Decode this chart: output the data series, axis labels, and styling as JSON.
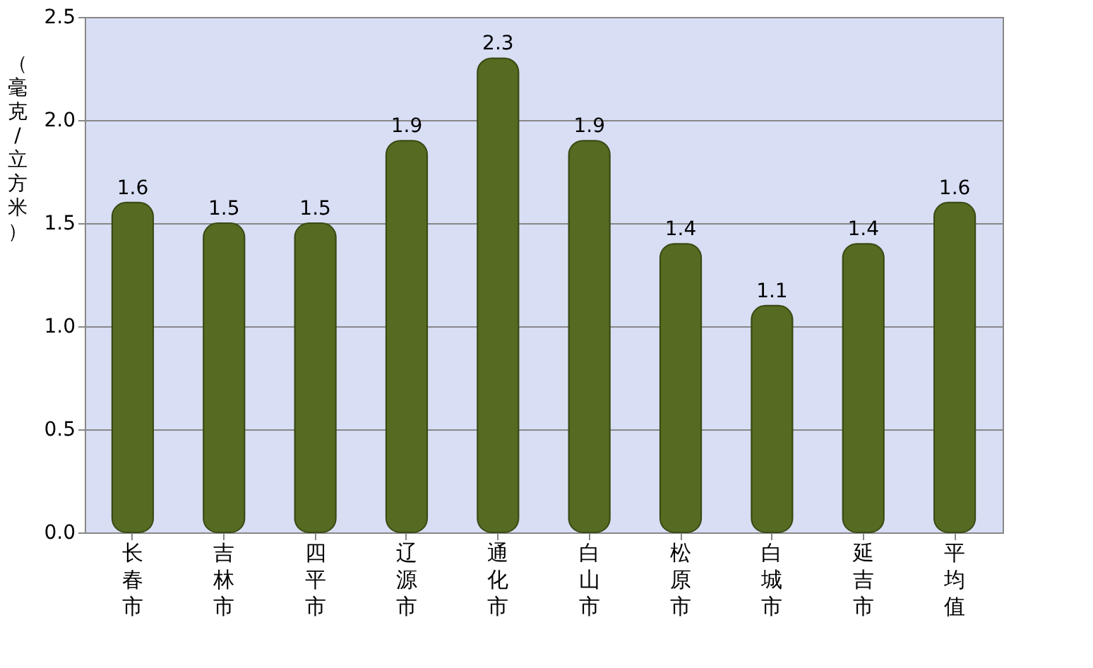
{
  "chart_data": {
    "type": "bar",
    "ylabel": "（毫克/立方米）",
    "categories": [
      "长春市",
      "吉林市",
      "四平市",
      "辽源市",
      "通化市",
      "白山市",
      "松原市",
      "白城市",
      "延吉市",
      "平均值"
    ],
    "values": [
      1.6,
      1.5,
      1.5,
      1.9,
      2.3,
      1.9,
      1.4,
      1.1,
      1.4,
      1.6
    ],
    "color": "#556b22",
    "ylim": [
      0,
      2.5
    ],
    "yticks": [
      {
        "value": 0,
        "label": "0.0"
      },
      0.5,
      {
        "value": 1,
        "label": "1.0"
      },
      1.5,
      {
        "value": 2,
        "label": "2.0"
      },
      2.5
    ],
    "grid": "y",
    "data_labels": true
  }
}
